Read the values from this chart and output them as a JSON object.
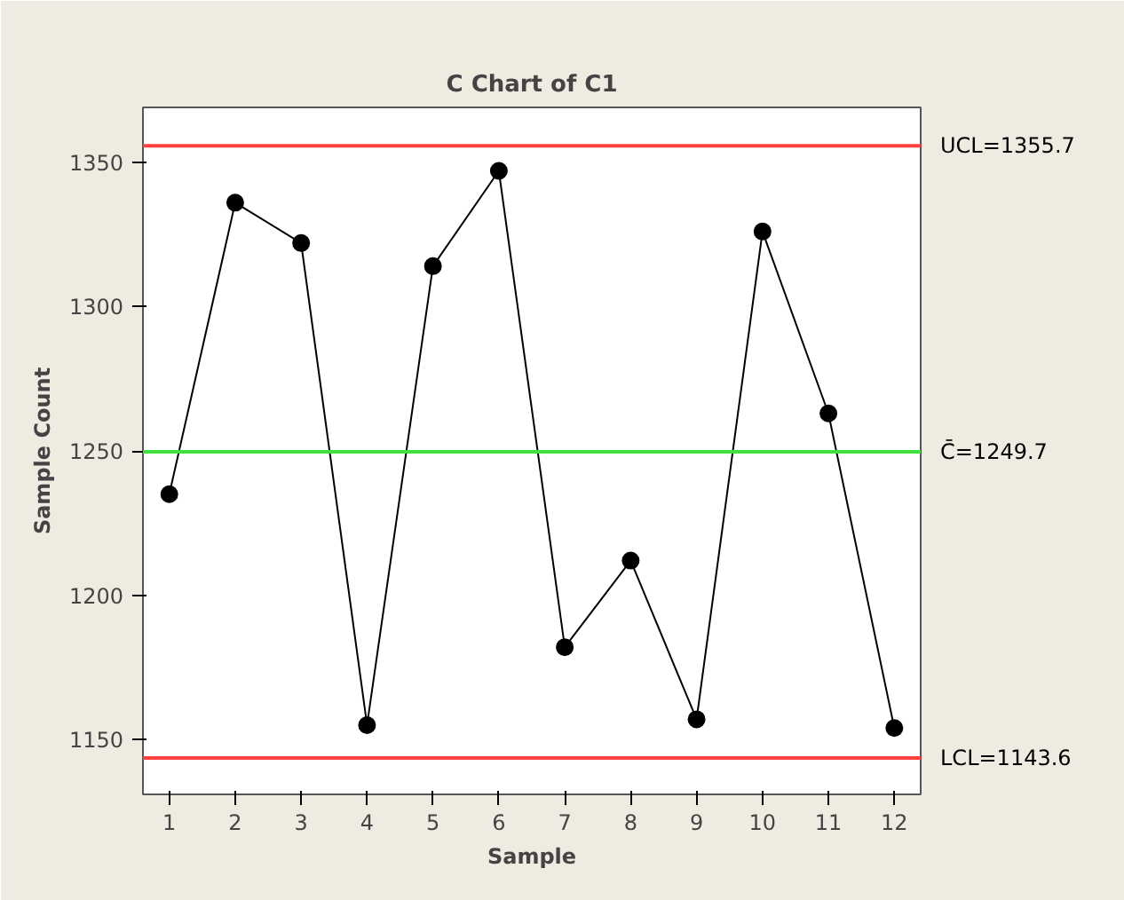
{
  "chart_data": {
    "type": "line",
    "title": "C Chart of C1",
    "xlabel": "Sample",
    "ylabel": "Sample Count",
    "x": [
      1,
      2,
      3,
      4,
      5,
      6,
      7,
      8,
      9,
      10,
      11,
      12
    ],
    "series": [
      {
        "color": "#000000",
        "values": [
          1235,
          1336,
          1322,
          1155,
          1314,
          1347,
          1182,
          1212,
          1157,
          1326,
          1263,
          1154
        ]
      }
    ],
    "xlim": [
      0.6,
      12.4
    ],
    "ylim": [
      1131,
      1369
    ],
    "xticks": [
      1,
      2,
      3,
      4,
      5,
      6,
      7,
      8,
      9,
      10,
      11,
      12
    ],
    "yticks": [
      1150,
      1200,
      1250,
      1300,
      1350
    ],
    "ref_lines": [
      {
        "axis": "y",
        "value": 1355.7,
        "label": "UCL=1355.7",
        "color": "#ff4040"
      },
      {
        "axis": "y",
        "value": 1249.7,
        "label": "C̄=1249.7",
        "color": "#40e040"
      },
      {
        "axis": "y",
        "value": 1143.6,
        "label": "LCL=1143.6",
        "color": "#ff4040"
      }
    ],
    "grid": false,
    "marker": "circle",
    "line_style": "solid"
  }
}
